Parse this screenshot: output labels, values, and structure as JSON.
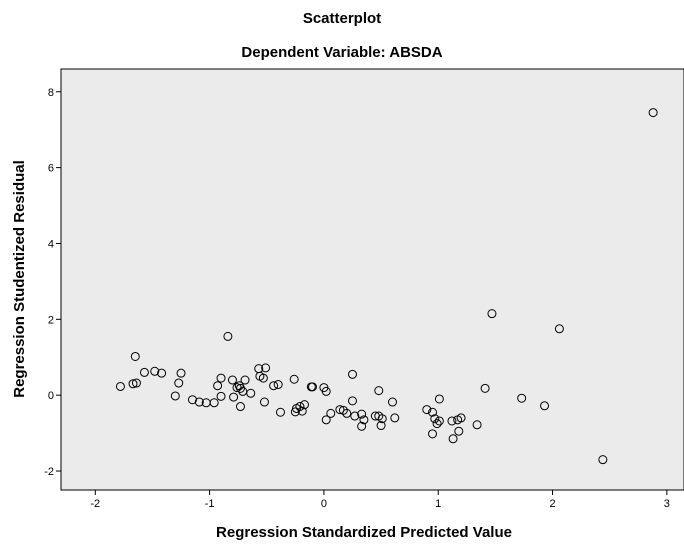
{
  "chart_data": {
    "type": "scatter",
    "title": "Scatterplot",
    "subtitle": "Dependent Variable: ABSDA",
    "xlabel": "Regression Standardized Predicted Value",
    "ylabel": "Regression Studentized Residual",
    "xlim": [
      -2.3,
      3.15
    ],
    "ylim": [
      -2.5,
      8.6
    ],
    "xticks": [
      "-2",
      "-1",
      "0",
      "1",
      "2",
      "3"
    ],
    "xtick_values": [
      -2,
      -1,
      0,
      1,
      2,
      3
    ],
    "yticks": [
      "-2",
      "0",
      "2",
      "4",
      "6",
      "8"
    ],
    "ytick_values": [
      -2,
      0,
      2,
      4,
      6,
      8
    ],
    "grid": false,
    "colors": {
      "plot_background": "#ebebeb",
      "marker_stroke": "#000000",
      "marker_fill": "none"
    },
    "x": [
      -1.78,
      -1.67,
      -1.64,
      -1.65,
      -1.57,
      -1.48,
      -1.42,
      -1.3,
      -1.27,
      -1.25,
      -1.15,
      -1.09,
      -1.03,
      -0.96,
      -0.93,
      -0.9,
      -0.9,
      -0.84,
      -0.8,
      -0.79,
      -0.76,
      -0.74,
      -0.73,
      -0.73,
      -0.71,
      -0.69,
      -0.64,
      -0.57,
      -0.56,
      -0.53,
      -0.52,
      -0.51,
      -0.44,
      -0.4,
      -0.38,
      -0.26,
      -0.25,
      -0.24,
      -0.21,
      -0.19,
      -0.17,
      -0.11,
      -0.1,
      0.0,
      0.02,
      0.02,
      0.06,
      0.14,
      0.17,
      0.2,
      0.25,
      0.25,
      0.27,
      0.33,
      0.33,
      0.35,
      0.45,
      0.48,
      0.48,
      0.5,
      0.51,
      0.6,
      0.62,
      0.9,
      0.95,
      0.95,
      0.97,
      0.99,
      1.01,
      1.01,
      1.12,
      1.13,
      1.17,
      1.18,
      1.2,
      1.34,
      1.41,
      1.47,
      1.73,
      1.93,
      2.06,
      2.44,
      2.88
    ],
    "y": [
      0.23,
      0.3,
      0.32,
      1.02,
      0.6,
      0.63,
      0.58,
      -0.02,
      0.32,
      0.58,
      -0.12,
      -0.18,
      -0.2,
      -0.2,
      0.25,
      -0.03,
      0.45,
      1.55,
      0.4,
      -0.05,
      0.2,
      0.25,
      0.18,
      -0.3,
      0.1,
      0.4,
      0.05,
      0.7,
      0.5,
      0.45,
      -0.18,
      0.72,
      0.25,
      0.28,
      -0.45,
      0.42,
      -0.44,
      -0.35,
      -0.3,
      -0.42,
      -0.25,
      0.22,
      0.22,
      0.2,
      -0.65,
      0.1,
      -0.48,
      -0.38,
      -0.4,
      -0.48,
      -0.15,
      0.55,
      -0.55,
      -0.5,
      -0.82,
      -0.65,
      -0.55,
      0.12,
      -0.55,
      -0.8,
      -0.62,
      -0.18,
      -0.6,
      -0.38,
      -1.02,
      -0.45,
      -0.62,
      -0.75,
      -0.1,
      -0.68,
      -0.68,
      -1.15,
      -0.65,
      -0.95,
      -0.6,
      -0.78,
      0.18,
      2.15,
      -0.08,
      -0.28,
      1.75,
      -1.7,
      7.45
    ]
  }
}
